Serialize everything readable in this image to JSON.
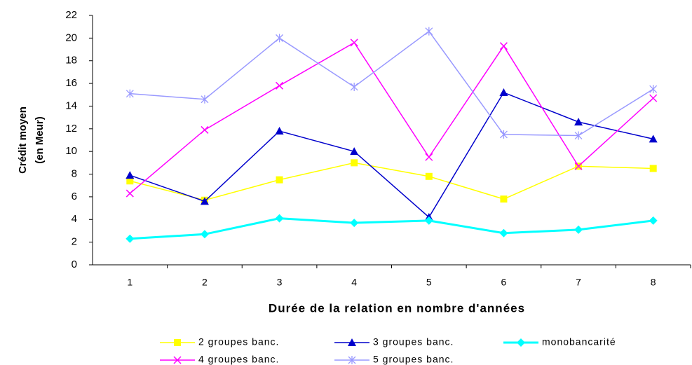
{
  "chart_data": {
    "type": "line",
    "y_label": [
      "Crédit moyen",
      "(en Meur)"
    ],
    "x_label": "Durée de la relation en nombre d'années",
    "categories": [
      "1",
      "2",
      "3",
      "4",
      "5",
      "6",
      "7",
      "8"
    ],
    "ylim": [
      0,
      22
    ],
    "yticks": [
      0,
      2,
      4,
      6,
      8,
      10,
      12,
      14,
      16,
      18,
      20,
      22
    ],
    "series": [
      {
        "name": "2 groupes banc.",
        "color": "#ffff00",
        "marker": "square",
        "line_width": 1.5,
        "values": [
          7.4,
          5.7,
          7.5,
          9.0,
          7.8,
          5.8,
          8.7,
          8.5
        ]
      },
      {
        "name": "3 groupes banc.",
        "color": "#0000cc",
        "marker": "triangle",
        "line_width": 1.5,
        "values": [
          7.9,
          5.6,
          11.8,
          10.0,
          4.2,
          15.2,
          12.6,
          11.1
        ]
      },
      {
        "name": "monobancarité",
        "color": "#00ffff",
        "marker": "diamond",
        "line_width": 3,
        "values": [
          2.3,
          2.7,
          4.1,
          3.7,
          3.9,
          2.8,
          3.1,
          3.9
        ]
      },
      {
        "name": "4 groupes banc.",
        "color": "#ff00ff",
        "marker": "x",
        "line_width": 1.5,
        "values": [
          6.3,
          11.9,
          15.8,
          19.6,
          9.5,
          19.3,
          8.7,
          14.7
        ]
      },
      {
        "name": "5 groupes banc.",
        "color": "#9999ff",
        "marker": "star",
        "line_width": 1.5,
        "values": [
          15.1,
          14.6,
          20.0,
          15.7,
          20.6,
          11.5,
          11.4,
          15.5
        ]
      }
    ]
  }
}
